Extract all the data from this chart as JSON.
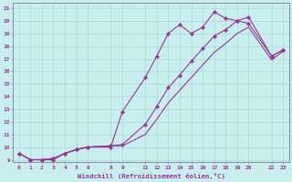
{
  "xlabel": "Windchill (Refroidissement éolien,°C)",
  "background_color": "#c8eeee",
  "grid_color": "#a8d8d8",
  "line_color": "#993399",
  "xlim": [
    -0.5,
    23.5
  ],
  "ylim": [
    8.8,
    21.4
  ],
  "xticks": [
    0,
    1,
    2,
    3,
    4,
    5,
    6,
    8,
    9,
    11,
    12,
    13,
    14,
    15,
    16,
    17,
    18,
    19,
    20,
    22,
    23
  ],
  "yticks": [
    9,
    10,
    11,
    12,
    13,
    14,
    15,
    16,
    17,
    18,
    19,
    20,
    21
  ],
  "line1_x": [
    0,
    1,
    2,
    3,
    4,
    5,
    6,
    8,
    9,
    11,
    12,
    13,
    14,
    15,
    16,
    17,
    18,
    19,
    20,
    22,
    23
  ],
  "line1_y": [
    9.5,
    9.0,
    9.0,
    9.0,
    9.5,
    9.8,
    10.0,
    10.0,
    12.8,
    15.5,
    17.2,
    19.0,
    19.7,
    19.0,
    19.5,
    20.7,
    20.2,
    20.0,
    19.8,
    17.2,
    17.7
  ],
  "line2_x": [
    0,
    1,
    2,
    3,
    4,
    5,
    6,
    8,
    9,
    11,
    12,
    13,
    14,
    15,
    16,
    17,
    18,
    19,
    20,
    22,
    23
  ],
  "line2_y": [
    9.5,
    9.0,
    9.0,
    9.1,
    9.5,
    9.8,
    10.0,
    10.1,
    10.2,
    11.8,
    13.2,
    14.7,
    15.7,
    16.8,
    17.8,
    18.8,
    19.3,
    20.0,
    20.3,
    17.2,
    17.7
  ],
  "line3_x": [
    0,
    1,
    2,
    3,
    4,
    5,
    6,
    8,
    9,
    11,
    12,
    13,
    14,
    15,
    16,
    17,
    18,
    19,
    20,
    22,
    23
  ],
  "line3_y": [
    9.5,
    9.0,
    9.0,
    9.1,
    9.5,
    9.8,
    10.0,
    10.1,
    10.1,
    11.0,
    12.2,
    13.5,
    14.5,
    15.5,
    16.5,
    17.5,
    18.2,
    19.0,
    19.5,
    16.9,
    17.6
  ]
}
